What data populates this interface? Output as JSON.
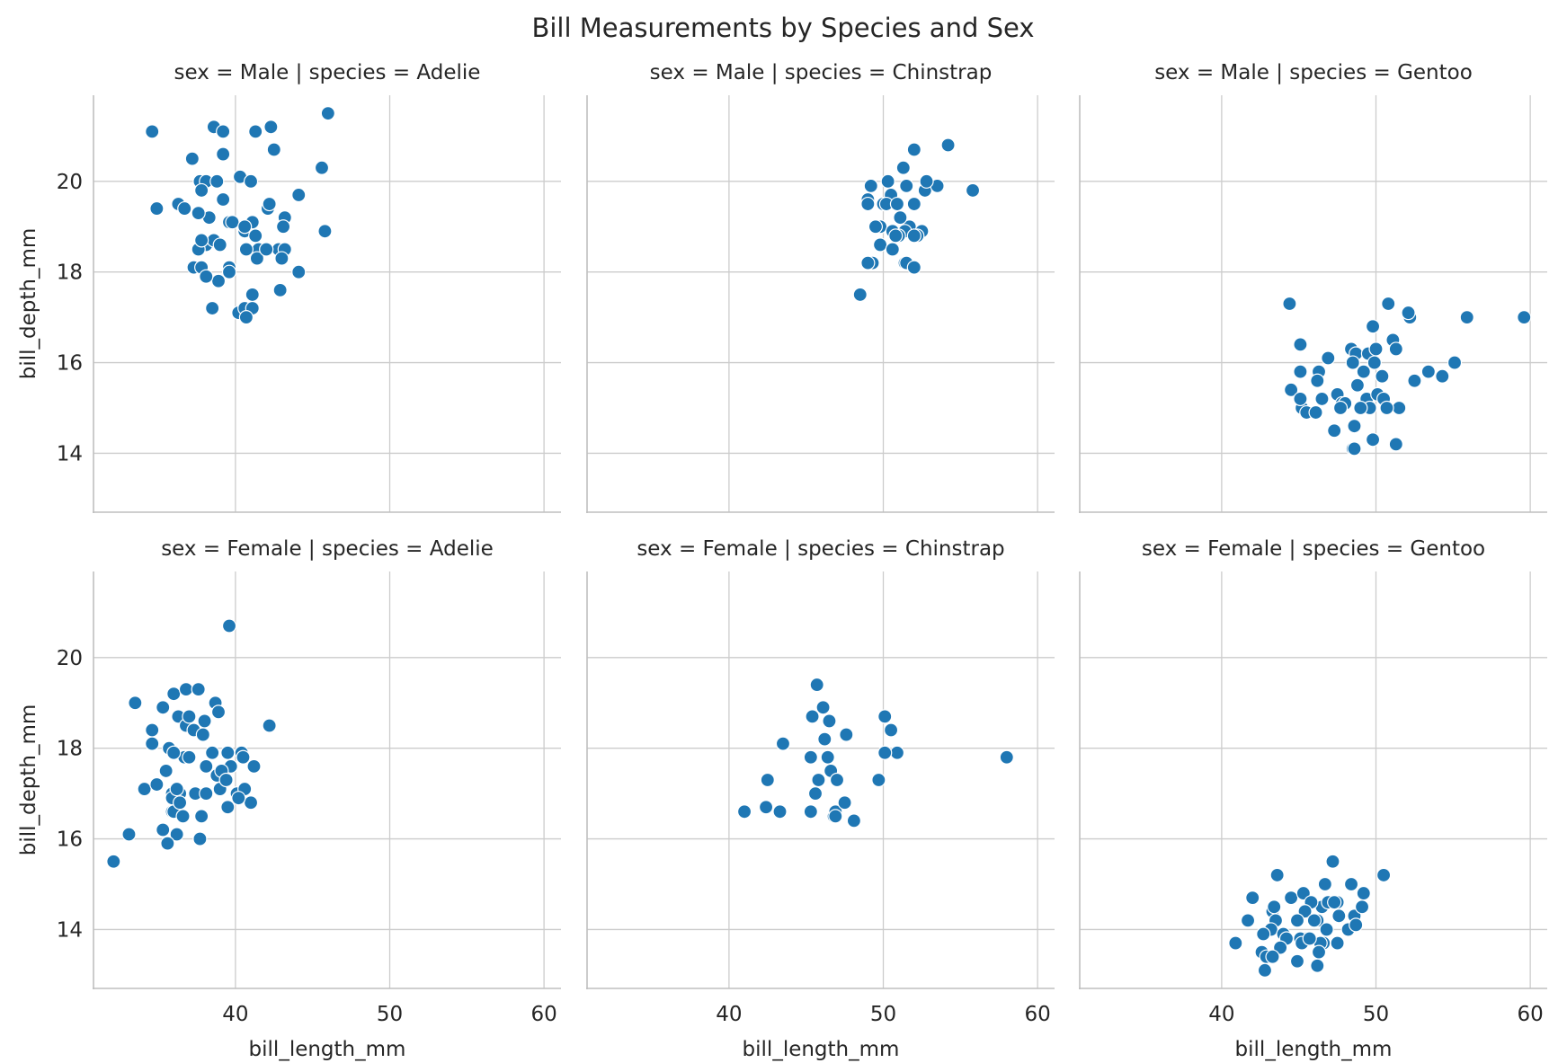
{
  "chart_data": {
    "type": "scatter",
    "title": "Bill Measurements by Species and Sex",
    "xlabel": "bill_length_mm",
    "ylabel": "bill_depth_mm",
    "xlim": [
      30.8,
      61.1
    ],
    "ylim": [
      12.7,
      21.9
    ],
    "xticks": [
      40,
      50,
      60
    ],
    "yticks": [
      14,
      16,
      18,
      20
    ],
    "grid": true,
    "color": "#1f77b4",
    "facets": [
      {
        "title": "sex = Male | species = Adelie",
        "x": [
          34.6,
          38.6,
          39.2,
          42.3,
          46.0,
          37.2,
          39.2,
          41.3,
          45.6,
          37.7,
          38.1,
          38.8,
          39.2,
          40.3,
          41.0,
          42.5,
          44.1,
          36.3,
          34.9,
          36.7,
          37.8,
          38.3,
          39.6,
          41.1,
          42.1,
          42.2,
          40.6,
          39.8,
          37.6,
          38.1,
          38.6,
          41.3,
          43.2,
          40.6,
          41.5,
          42.8,
          45.8,
          37.6,
          37.8,
          39.0,
          40.7,
          41.4,
          42.0,
          43.1,
          37.3,
          39.6,
          38.9,
          40.2,
          41.1,
          42.9,
          37.8,
          38.1,
          39.6,
          43.2,
          44.1,
          40.6,
          41.1,
          38.5,
          40.7,
          43.0
        ],
        "y": [
          21.1,
          21.2,
          21.1,
          21.2,
          21.5,
          20.5,
          20.6,
          21.1,
          20.3,
          20.0,
          20.0,
          20.0,
          19.6,
          20.1,
          20.0,
          20.7,
          19.7,
          19.5,
          19.4,
          19.4,
          19.8,
          19.2,
          19.1,
          19.1,
          19.4,
          19.5,
          18.9,
          19.1,
          19.3,
          18.6,
          18.7,
          18.8,
          19.2,
          19.0,
          18.5,
          18.5,
          18.9,
          18.5,
          18.7,
          18.6,
          18.5,
          18.3,
          18.5,
          19.0,
          18.1,
          18.1,
          17.8,
          17.1,
          17.5,
          17.6,
          18.1,
          17.9,
          18.0,
          18.5,
          18.0,
          17.2,
          17.2,
          17.2,
          17.0,
          18.3
        ]
      },
      {
        "title": "sex = Male | species = Chinstrap",
        "x": [
          52.0,
          54.2,
          51.3,
          52.7,
          50.3,
          49.2,
          50.5,
          51.5,
          53.5,
          52.8,
          55.8,
          49.0,
          50.0,
          50.2,
          49.0,
          50.9,
          52.0,
          51.7,
          49.8,
          51.1,
          52.5,
          49.5,
          50.6,
          51.4,
          51.0,
          50.8,
          52.2,
          49.8,
          50.6,
          52.0,
          51.4,
          49.3,
          49.0,
          51.5,
          52.0,
          48.5
        ],
        "y": [
          20.7,
          20.8,
          20.3,
          19.8,
          20.0,
          19.9,
          19.7,
          19.9,
          19.9,
          20.0,
          19.8,
          19.6,
          19.5,
          19.5,
          19.5,
          19.5,
          19.5,
          19.0,
          19.0,
          19.2,
          18.9,
          19.0,
          18.9,
          18.9,
          18.8,
          18.8,
          18.8,
          18.6,
          18.5,
          18.8,
          18.2,
          18.2,
          18.2,
          18.2,
          18.1,
          17.5
        ]
      },
      {
        "title": "sex = Male | species = Gentoo",
        "x": [
          44.4,
          50.8,
          52.2,
          55.9,
          59.6,
          52.1,
          49.8,
          51.1,
          45.1,
          48.4,
          48.7,
          49.5,
          50.0,
          51.3,
          45.1,
          46.3,
          46.9,
          48.5,
          49.2,
          49.9,
          50.4,
          52.5,
          53.4,
          54.3,
          55.1,
          44.5,
          46.2,
          47.5,
          47.8,
          48.8,
          49.4,
          49.6,
          50.1,
          50.5,
          51.5,
          45.2,
          45.5,
          46.1,
          47.3,
          48.0,
          48.6,
          49.0,
          50.7,
          45.1,
          46.5,
          47.7,
          48.5,
          49.8,
          48.6,
          51.3
        ],
        "y": [
          17.3,
          17.3,
          17.0,
          17.0,
          17.0,
          17.1,
          16.8,
          16.5,
          16.4,
          16.3,
          16.2,
          16.2,
          16.3,
          16.3,
          15.8,
          15.8,
          16.1,
          16.0,
          15.8,
          16.0,
          15.7,
          15.6,
          15.8,
          15.7,
          16.0,
          15.4,
          15.6,
          15.3,
          15.1,
          15.5,
          15.2,
          15.0,
          15.3,
          15.2,
          15.0,
          15.0,
          14.9,
          14.9,
          14.5,
          15.1,
          14.6,
          15.0,
          15.0,
          15.2,
          15.2,
          15.0,
          14.1,
          14.3,
          14.1,
          14.2
        ]
      },
      {
        "title": "sex = Female | species = Adelie",
        "x": [
          39.6,
          33.5,
          36.0,
          36.8,
          37.6,
          38.7,
          35.3,
          38.0,
          38.9,
          42.2,
          34.6,
          36.3,
          36.8,
          37.3,
          37.0,
          37.9,
          34.6,
          35.5,
          36.7,
          39.5,
          40.4,
          35.7,
          36.0,
          38.5,
          40.5,
          41.2,
          34.1,
          34.9,
          35.9,
          36.2,
          36.4,
          37.4,
          38.1,
          39.0,
          39.5,
          35.9,
          36.0,
          36.6,
          37.8,
          38.8,
          39.7,
          40.1,
          41.0,
          35.9,
          36.2,
          37.0,
          38.1,
          39.1,
          39.4,
          40.6,
          33.1,
          32.1,
          36.2,
          37.7,
          35.3,
          35.6,
          36.4,
          40.2
        ],
        "y": [
          20.7,
          19.0,
          19.2,
          19.3,
          19.3,
          19.0,
          18.9,
          18.6,
          18.8,
          18.5,
          18.4,
          18.7,
          18.5,
          18.4,
          18.7,
          18.3,
          18.1,
          17.5,
          17.8,
          17.9,
          17.9,
          18.0,
          17.9,
          17.9,
          17.8,
          17.6,
          17.1,
          17.2,
          17.0,
          17.1,
          17.0,
          17.0,
          17.0,
          17.1,
          16.7,
          16.6,
          16.6,
          16.5,
          16.5,
          17.4,
          17.6,
          17.0,
          16.8,
          16.9,
          17.1,
          17.8,
          17.6,
          17.5,
          17.3,
          17.1,
          16.1,
          15.5,
          16.1,
          16.0,
          16.2,
          15.9,
          16.8,
          16.9
        ],
        "xlabel": "bill_length_mm"
      },
      {
        "title": "sex = Female | species = Chinstrap",
        "x": [
          45.7,
          45.4,
          46.1,
          46.5,
          50.1,
          50.5,
          43.5,
          46.2,
          47.6,
          50.9,
          45.3,
          46.4,
          50.1,
          58.0,
          42.5,
          45.8,
          46.6,
          47.0,
          49.7,
          41.0,
          42.4,
          43.3,
          45.3,
          46.8,
          46.9,
          47.5,
          48.1,
          45.6,
          46.9
        ],
        "y": [
          19.4,
          18.7,
          18.9,
          18.6,
          18.7,
          18.4,
          18.1,
          18.2,
          18.3,
          17.9,
          17.8,
          17.8,
          17.9,
          17.8,
          17.3,
          17.3,
          17.5,
          17.3,
          17.3,
          16.6,
          16.7,
          16.6,
          16.6,
          16.5,
          16.6,
          16.8,
          16.4,
          17.0,
          16.5
        ],
        "xlabel": "bill_length_mm"
      },
      {
        "title": "sex = Female | species = Gentoo",
        "x": [
          47.2,
          50.5,
          43.6,
          46.7,
          48.4,
          42.0,
          44.5,
          45.3,
          46.5,
          47.5,
          49.2,
          45.8,
          46.9,
          47.3,
          48.6,
          49.1,
          41.7,
          43.3,
          43.5,
          45.4,
          46.2,
          47.6,
          44.9,
          46.0,
          46.8,
          43.2,
          45.5,
          48.2,
          44.0,
          45.1,
          46.6,
          48.7,
          42.7,
          44.2,
          45.2,
          46.4,
          47.5,
          43.4,
          45.7,
          40.9,
          43.8,
          46.3,
          44.9,
          42.6,
          42.9,
          46.2,
          43.3,
          42.8
        ],
        "y": [
          15.5,
          15.2,
          15.2,
          15.0,
          15.0,
          14.7,
          14.7,
          14.8,
          14.5,
          14.6,
          14.8,
          14.6,
          14.6,
          14.6,
          14.3,
          14.5,
          14.2,
          14.4,
          14.2,
          14.4,
          14.2,
          14.3,
          14.2,
          14.2,
          14.0,
          14.0,
          13.8,
          14.0,
          13.9,
          13.8,
          13.7,
          14.1,
          13.9,
          13.8,
          13.7,
          13.7,
          13.7,
          14.5,
          13.8,
          13.7,
          13.6,
          13.5,
          13.3,
          13.5,
          13.4,
          13.2,
          13.4,
          13.1
        ],
        "xlabel": "bill_length_mm"
      }
    ]
  }
}
